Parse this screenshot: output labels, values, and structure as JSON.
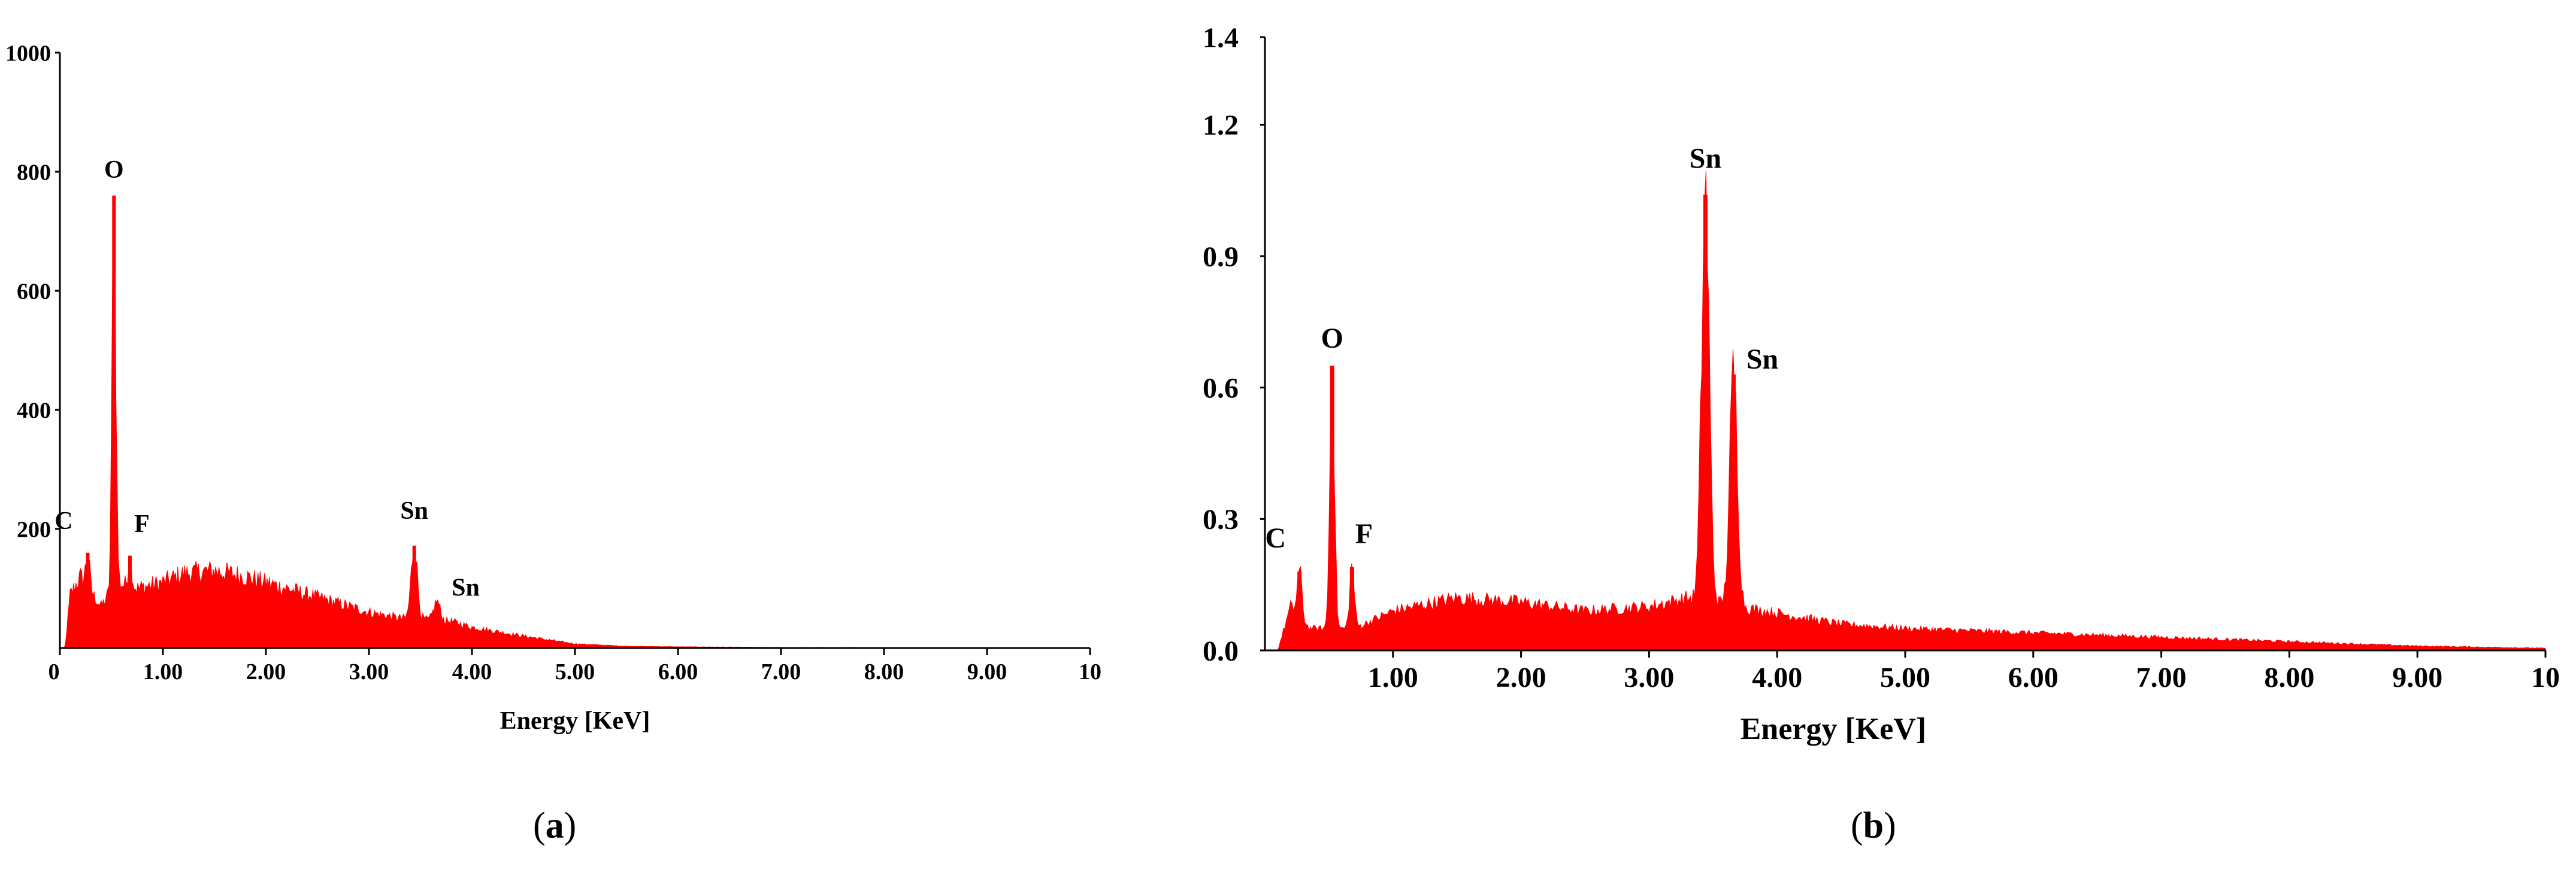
{
  "colors": {
    "spectrum": "#ff0000",
    "axis": "#000000",
    "background": "#ffffff"
  },
  "chart_data": [
    {
      "type": "area",
      "panel_label": "a",
      "xlabel": "Energy [KeV]",
      "ylabel": "",
      "xlim": [
        0,
        10
      ],
      "ylim": [
        0,
        1000
      ],
      "grid": false,
      "x_ticks": [
        0,
        1,
        2,
        3,
        4,
        5,
        6,
        7,
        8,
        9,
        10
      ],
      "x_tick_labels": [
        "0",
        "1.00",
        "2.00",
        "3.00",
        "4.00",
        "5.00",
        "6.00",
        "7.00",
        "8.00",
        "9.00",
        "10"
      ],
      "y_ticks": [
        200,
        400,
        600,
        800,
        1000
      ],
      "y_tick_labels": [
        "200",
        "400",
        "600",
        "800",
        "1000"
      ],
      "peaks": [
        {
          "label": "C",
          "x": 0.27,
          "y": 160
        },
        {
          "label": "O",
          "x": 0.525,
          "y": 760
        },
        {
          "label": "F",
          "x": 0.68,
          "y": 155
        },
        {
          "label": "Sn",
          "x": 3.44,
          "y": 172
        },
        {
          "label": "Sn",
          "x": 3.66,
          "y": 78
        }
      ],
      "background_points": [
        [
          0.05,
          0
        ],
        [
          0.1,
          90
        ],
        [
          0.2,
          120
        ],
        [
          0.4,
          70
        ],
        [
          0.55,
          110
        ],
        [
          0.75,
          100
        ],
        [
          1.0,
          110
        ],
        [
          1.2,
          125
        ],
        [
          1.5,
          130
        ],
        [
          1.8,
          120
        ],
        [
          2.1,
          105
        ],
        [
          2.5,
          85
        ],
        [
          3.0,
          60
        ],
        [
          3.3,
          50
        ],
        [
          3.8,
          45
        ],
        [
          4.0,
          35
        ],
        [
          4.5,
          20
        ],
        [
          5.0,
          7
        ],
        [
          5.5,
          3
        ],
        [
          6.0,
          2
        ],
        [
          7.0,
          1
        ],
        [
          8.0,
          1
        ],
        [
          10.0,
          0
        ]
      ]
    },
    {
      "type": "area",
      "panel_label": "b",
      "xlabel": "Energy [KeV]",
      "ylabel": "",
      "xlim": [
        0,
        10
      ],
      "ylim": [
        0,
        1.4
      ],
      "grid": false,
      "x_ticks": [
        1,
        2,
        3,
        4,
        5,
        6,
        7,
        8,
        9,
        10
      ],
      "x_tick_labels": [
        "1.00",
        "2.00",
        "3.00",
        "4.00",
        "5.00",
        "6.00",
        "7.00",
        "8.00",
        "9.00",
        "10"
      ],
      "y_ticks": [
        0,
        0.3,
        0.6,
        0.9,
        1.2,
        1.4
      ],
      "y_tick_labels": [
        "0.0",
        "0.3",
        "0.6",
        "0.9",
        "1.2",
        "1.4"
      ],
      "peaks": [
        {
          "label": "C",
          "x": 0.27,
          "y": 0.18
        },
        {
          "label": "O",
          "x": 0.525,
          "y": 0.65
        },
        {
          "label": "F",
          "x": 0.68,
          "y": 0.19
        },
        {
          "label": "Sn",
          "x": 3.44,
          "y": 1.04
        },
        {
          "label": "Sn",
          "x": 3.66,
          "y": 0.63
        }
      ],
      "background_points": [
        [
          0.1,
          0
        ],
        [
          0.2,
          0.1
        ],
        [
          0.35,
          0.05
        ],
        [
          0.45,
          0.05
        ],
        [
          0.7,
          0.05
        ],
        [
          1.0,
          0.09
        ],
        [
          1.5,
          0.12
        ],
        [
          2.0,
          0.11
        ],
        [
          2.5,
          0.09
        ],
        [
          3.0,
          0.1
        ],
        [
          3.3,
          0.12
        ],
        [
          3.9,
          0.09
        ],
        [
          4.5,
          0.06
        ],
        [
          5.0,
          0.05
        ],
        [
          6.0,
          0.04
        ],
        [
          7.0,
          0.03
        ],
        [
          8.0,
          0.02
        ],
        [
          9.0,
          0.01
        ],
        [
          10.0,
          0.005
        ]
      ]
    }
  ],
  "captions": {
    "a": "a",
    "b": "b"
  }
}
